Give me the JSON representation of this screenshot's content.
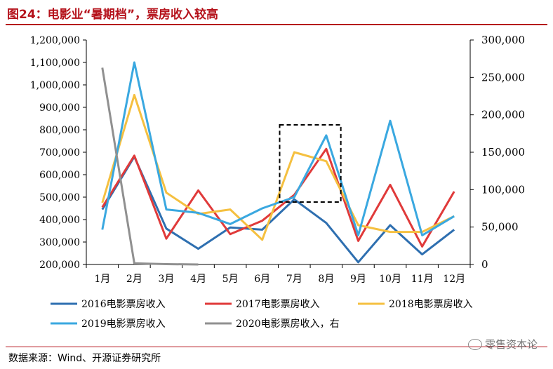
{
  "figure": {
    "title": "图24：电影业“暑期档”，票房收入较高",
    "source": "数据来源：Wind、开源证券研究所",
    "watermark": "零售资本论",
    "watermark_icon": "wechat-icon"
  },
  "chart_data": {
    "type": "line",
    "categories": [
      "1月",
      "2月",
      "3月",
      "4月",
      "5月",
      "6月",
      "7月",
      "8月",
      "9月",
      "10月",
      "11月",
      "12月"
    ],
    "ylim": [
      200000,
      1200000
    ],
    "y_ticks": [
      200000,
      300000,
      400000,
      500000,
      600000,
      700000,
      800000,
      900000,
      1000000,
      1100000,
      1200000
    ],
    "y_tick_labels": [
      "200,000",
      "300,000",
      "400,000",
      "500,000",
      "600,000",
      "700,000",
      "800,000",
      "900,000",
      "1,000,000",
      "1,100,000",
      "1,200,000"
    ],
    "y2lim": [
      0,
      300000
    ],
    "y2_ticks": [
      0,
      50000,
      100000,
      150000,
      200000,
      250000,
      300000
    ],
    "y2_tick_labels": [
      "0",
      "50,000",
      "100,000",
      "150,000",
      "200,000",
      "250,000",
      "300,000"
    ],
    "grid": false,
    "legend_position": "bottom",
    "series": [
      {
        "name": "2016电影票房收入",
        "axis": "left",
        "color": "#2e6fb0",
        "values": [
          445000,
          680000,
          360000,
          270000,
          365000,
          355000,
          490000,
          385000,
          210000,
          375000,
          245000,
          355000
        ]
      },
      {
        "name": "2017电影票房收入",
        "axis": "left",
        "color": "#e03a3a",
        "values": [
          455000,
          685000,
          315000,
          530000,
          335000,
          395000,
          510000,
          715000,
          305000,
          555000,
          280000,
          525000
        ]
      },
      {
        "name": "2018电影票房收入",
        "axis": "left",
        "color": "#f5c040",
        "values": [
          475000,
          955000,
          520000,
          425000,
          445000,
          310000,
          700000,
          660000,
          375000,
          345000,
          345000,
          415000
        ]
      },
      {
        "name": "2019电影票房收入",
        "axis": "left",
        "color": "#3aa8e0",
        "values": [
          355000,
          1100000,
          445000,
          430000,
          380000,
          450000,
          500000,
          775000,
          330000,
          840000,
          330000,
          415000
        ]
      },
      {
        "name": "2020电影票房收入，右",
        "axis": "right",
        "color": "#909090",
        "values": [
          263000,
          1500,
          500,
          0,
          null,
          null,
          null,
          null,
          null,
          null,
          null,
          null
        ]
      }
    ],
    "highlight_box": {
      "from_category": "7月",
      "to_category": "8月"
    }
  }
}
